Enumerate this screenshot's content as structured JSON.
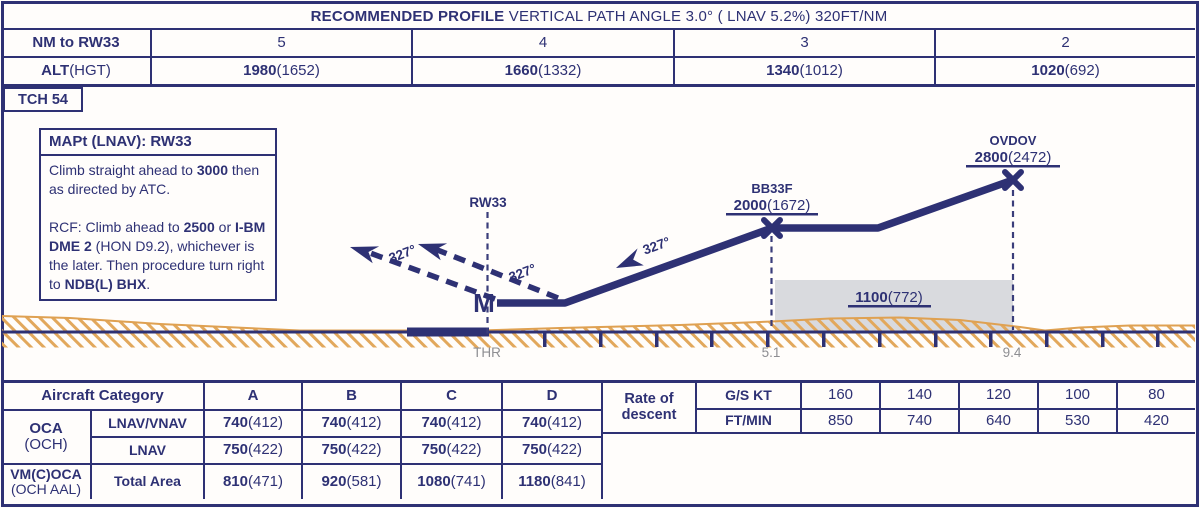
{
  "header": {
    "title_bold": "RECOMMENDED PROFILE",
    "title_rest": " VERTICAL PATH ANGLE 3.0° ( LNAV 5.2%) 320FT/NM"
  },
  "distance_table": {
    "nm_label": "NM to RW33",
    "alt_label_bold": "ALT",
    "alt_label_rest": "(HGT)",
    "cols": [
      {
        "nm": "5",
        "alt": "1980",
        "hgt": "(1652)"
      },
      {
        "nm": "4",
        "alt": "1660",
        "hgt": "(1332)"
      },
      {
        "nm": "3",
        "alt": "1340",
        "hgt": "(1012)"
      },
      {
        "nm": "2",
        "alt": "1020",
        "hgt": "(692)"
      }
    ]
  },
  "tch_box": {
    "label": "TCH 54"
  },
  "mapt_box": {
    "title": "MAPt (LNAV): RW33",
    "paragraphs": [
      [
        {
          "t": "Climb straight ahead to "
        },
        {
          "t": "3000",
          "b": 1
        },
        {
          "t": " then as directed by ATC."
        }
      ],
      [
        {
          "t": "RCF: Climb ahead to "
        },
        {
          "t": "2500",
          "b": 1
        },
        {
          "t": " or "
        },
        {
          "t": "I-BM DME 2",
          "b": 1
        },
        {
          "t": " (HON D9.2), whichever is the later. Then procedure turn right to "
        },
        {
          "t": "NDB(L) BHX",
          "b": 1
        },
        {
          "t": "."
        }
      ]
    ]
  },
  "profile": {
    "rw_label": "RW33",
    "thr_label": "THR",
    "mapt_symbol": "M",
    "course_label": "327°",
    "fixes": [
      {
        "name": "BB33F",
        "alt": "2000",
        "hgt": "(1672)",
        "dist": "5.1"
      },
      {
        "name": "OVDOV",
        "alt": "2800",
        "hgt": "(2472)",
        "dist": "9.4"
      }
    ],
    "min_alt": {
      "alt": "1100",
      "hgt": "(772)"
    }
  },
  "minima_table": {
    "category_header": "Aircraft Category",
    "cats": [
      "A",
      "B",
      "C",
      "D"
    ],
    "oca_bold": "OCA",
    "oca_rest": "(OCH)",
    "vm_bold": "VM(C)OCA",
    "vm_rest": "(OCH AAL)",
    "rows": [
      {
        "label": "LNAV/VNAV",
        "values": [
          {
            "v": "740",
            "p": "(412)"
          },
          {
            "v": "740",
            "p": "(412)"
          },
          {
            "v": "740",
            "p": "(412)"
          },
          {
            "v": "740",
            "p": "(412)"
          }
        ]
      },
      {
        "label": "LNAV",
        "values": [
          {
            "v": "750",
            "p": "(422)"
          },
          {
            "v": "750",
            "p": "(422)"
          },
          {
            "v": "750",
            "p": "(422)"
          },
          {
            "v": "750",
            "p": "(422)"
          }
        ]
      },
      {
        "label": "Total Area",
        "values": [
          {
            "v": "810",
            "p": "(471)"
          },
          {
            "v": "920",
            "p": "(581)"
          },
          {
            "v": "1080",
            "p": "(741)"
          },
          {
            "v": "1180",
            "p": "(841)"
          }
        ]
      }
    ]
  },
  "rod_table": {
    "label": "Rate of descent",
    "gs_label": "G/S KT",
    "ftmin_label": "FT/MIN",
    "gs": [
      "160",
      "140",
      "120",
      "100",
      "80"
    ],
    "ftmin": [
      "850",
      "740",
      "640",
      "530",
      "420"
    ]
  },
  "colors": {
    "navy": "#2e3174",
    "terrain_orange": "#dfa152",
    "shade_gray": "#d9dade",
    "scale_text_gray": "#8e8e92"
  }
}
